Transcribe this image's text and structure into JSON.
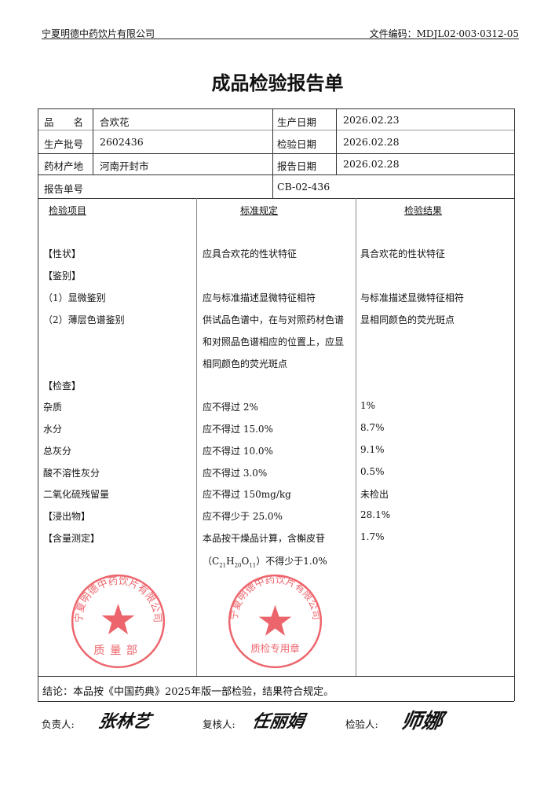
{
  "header": {
    "company": "宁夏明德中药饮片有限公司",
    "doc_code": "文件编码：MDJL02·003·0312-05"
  },
  "title": "成品检验报告单",
  "info": {
    "name_label": "品　　名",
    "name": "合欢花",
    "batch_label": "生产批号",
    "batch": "2602436",
    "origin_label": "药材产地",
    "origin": "河南开封市",
    "prod_date_label": "生产日期",
    "prod_date": "2026.02.23",
    "test_date_label": "检验日期",
    "test_date": "2026.02.28",
    "report_date_label": "报告日期",
    "report_date": "2026.02.28",
    "report_no_label": "报告单号",
    "report_no": "CB-02-436"
  },
  "columns": [
    "检验项目",
    "标准规定",
    "检验结果"
  ],
  "rows": [
    {
      "item": "【性状】",
      "std": "应具合欢花的性状特征",
      "result": "具合欢花的性状特征"
    },
    {
      "item": "【鉴别】",
      "std": "",
      "result": ""
    },
    {
      "item": "（1）显微鉴别",
      "std": "应与标准描述显微特征相符",
      "result": "与标准描述显微特征相符"
    },
    {
      "item": "（2）薄层色谱鉴别",
      "std": "供试品色谱中，在与对照药材色谱",
      "result": "显相同颜色的荧光斑点"
    },
    {
      "item": "",
      "std": "和对照品色谱相应的位置上，应显",
      "result": ""
    },
    {
      "item": "",
      "std": "相同颜色的荧光斑点",
      "result": ""
    },
    {
      "item": "【检查】",
      "std": "",
      "result": ""
    },
    {
      "item": "杂质",
      "std": "应不得过 2%",
      "result": "1%"
    },
    {
      "item": "水分",
      "std": "应不得过 15.0%",
      "result": "8.7%"
    },
    {
      "item": "总灰分",
      "std": "应不得过 10.0%",
      "result": "9.1%"
    },
    {
      "item": "酸不溶性灰分",
      "std": "应不得过 3.0%",
      "result": "0.5%"
    },
    {
      "item": "二氧化硫残留量",
      "std": "应不得过 150mg/kg",
      "result": "未检出"
    },
    {
      "item": "【浸出物】",
      "std": "应不得少于 25.0%",
      "result": "28.1%"
    },
    {
      "item": "【含量测定】",
      "std": "本品按干燥品计算，含槲皮苷",
      "result": "1.7%"
    }
  ],
  "formula": {
    "open": "（C",
    "c": "21",
    "h": "H",
    "hn": "20",
    "o": "O",
    "on": "11",
    "close": "）不得少于1.0%"
  },
  "conclusion": "结论：本品按《中国药典》2025年版一部检验，结果符合规定。",
  "signatures": {
    "responsible_label": "负责人:",
    "responsible": "张林艺",
    "reviewer_label": "复核人:",
    "reviewer": "任丽娟",
    "inspector_label": "检验人:",
    "inspector": "师娜"
  },
  "stamps": {
    "top": {
      "ring": "宁夏明德中药饮片有限公司",
      "center": "质量部"
    },
    "bottom": {
      "ring": "宁夏明德中药饮片有限公司",
      "center": "质检专用章"
    },
    "color": "#e8323c"
  }
}
